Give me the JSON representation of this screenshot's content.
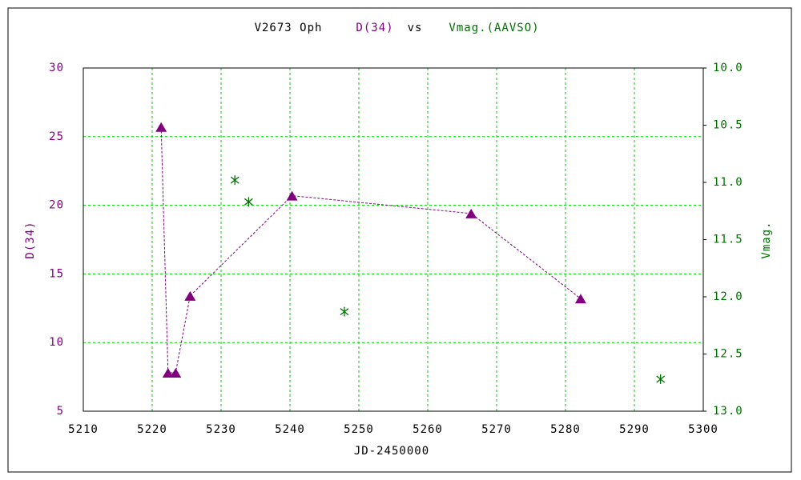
{
  "chart_data": {
    "type": "scatter",
    "title": "V2673 Oph",
    "title_separator": "vs",
    "xlabel": "JD-2450000",
    "ylabel": "D(34)",
    "y2label": "Vmag.",
    "xlim": [
      5210,
      5300
    ],
    "xticks": [
      5210,
      5220,
      5230,
      5240,
      5250,
      5260,
      5270,
      5280,
      5290,
      5300
    ],
    "ylim": [
      5,
      30
    ],
    "yticks": [
      5,
      10,
      15,
      20,
      25,
      30
    ],
    "y2lim": [
      10,
      13
    ],
    "y2_inverted": true,
    "y2ticks": [
      {
        "value": 10,
        "label": "10.0"
      },
      {
        "value": 10.5,
        "label": "10.5"
      },
      {
        "value": 11,
        "label": "11.0"
      },
      {
        "value": 11.5,
        "label": "11.5"
      },
      {
        "value": 12,
        "label": "12.0"
      },
      {
        "value": 12.5,
        "label": "12.5"
      },
      {
        "value": 13,
        "label": "13.0"
      }
    ],
    "grid": true,
    "series": [
      {
        "name": "D(34)",
        "color": "#800080",
        "marker": "triangle",
        "connected": true,
        "x": [
          5221.3,
          5222.3,
          5223.4,
          5225.5,
          5240.3,
          5266.3,
          5282.2
        ],
        "values": [
          25.7,
          7.8,
          7.8,
          13.4,
          20.7,
          19.4,
          13.2
        ]
      },
      {
        "name": "Vmag.(AAVSO)",
        "color": "#007000",
        "marker": "star",
        "connected": false,
        "axis": "y2",
        "x": [
          5232.0,
          5234.0,
          5247.9,
          5293.8
        ],
        "values": [
          10.98,
          11.17,
          12.13,
          12.72
        ]
      }
    ]
  }
}
